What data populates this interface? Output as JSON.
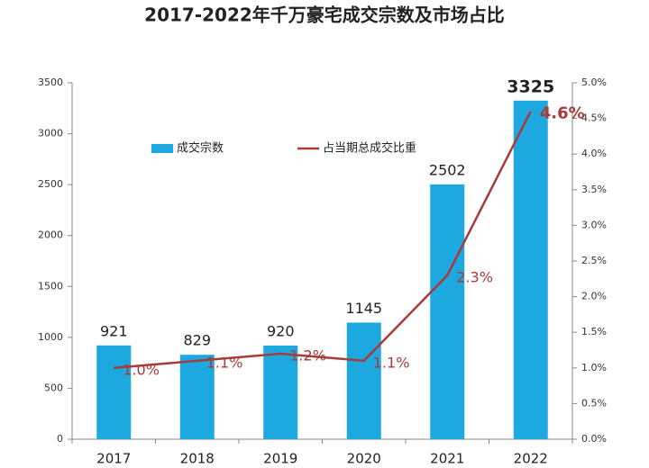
{
  "chart_data": {
    "type": "bar",
    "title": "2017-2022年千万豪宅成交宗数及市场占比",
    "categories": [
      "2017",
      "2018",
      "2019",
      "2020",
      "2021",
      "2022"
    ],
    "series": [
      {
        "name": "成交宗数",
        "type": "bar",
        "color": "#1ea8e0",
        "values": [
          921,
          829,
          920,
          1145,
          2502,
          3325
        ]
      },
      {
        "name": "占当期总成交比重",
        "type": "line",
        "axis": "y2",
        "color": "#a83a3a",
        "values": [
          1.0,
          1.1,
          1.2,
          1.1,
          2.3,
          4.6
        ],
        "value_labels": [
          "1.0%",
          "1.1%",
          "1.2%",
          "1.1%",
          "2.3%",
          "4.6%"
        ]
      }
    ],
    "ylim": [
      0,
      3500
    ],
    "yticks": [
      0,
      500,
      1000,
      1500,
      2000,
      2500,
      3000,
      3500
    ],
    "y2lim": [
      0,
      5
    ],
    "y2ticks": [
      {
        "value": 0,
        "label": "0.0%"
      },
      {
        "value": 0.5,
        "label": "0.5%"
      },
      {
        "value": 1,
        "label": "1.0%"
      },
      {
        "value": 1.5,
        "label": "1.5%"
      },
      {
        "value": 2,
        "label": "2.0%"
      },
      {
        "value": 2.5,
        "label": "2.5%"
      },
      {
        "value": 3,
        "label": "3.0%"
      },
      {
        "value": 3.5,
        "label": "3.5%"
      },
      {
        "value": 4,
        "label": "4.0%"
      },
      {
        "value": 4.5,
        "label": "4.5%"
      },
      {
        "value": 5,
        "label": "5.0%"
      }
    ],
    "grid": false
  }
}
